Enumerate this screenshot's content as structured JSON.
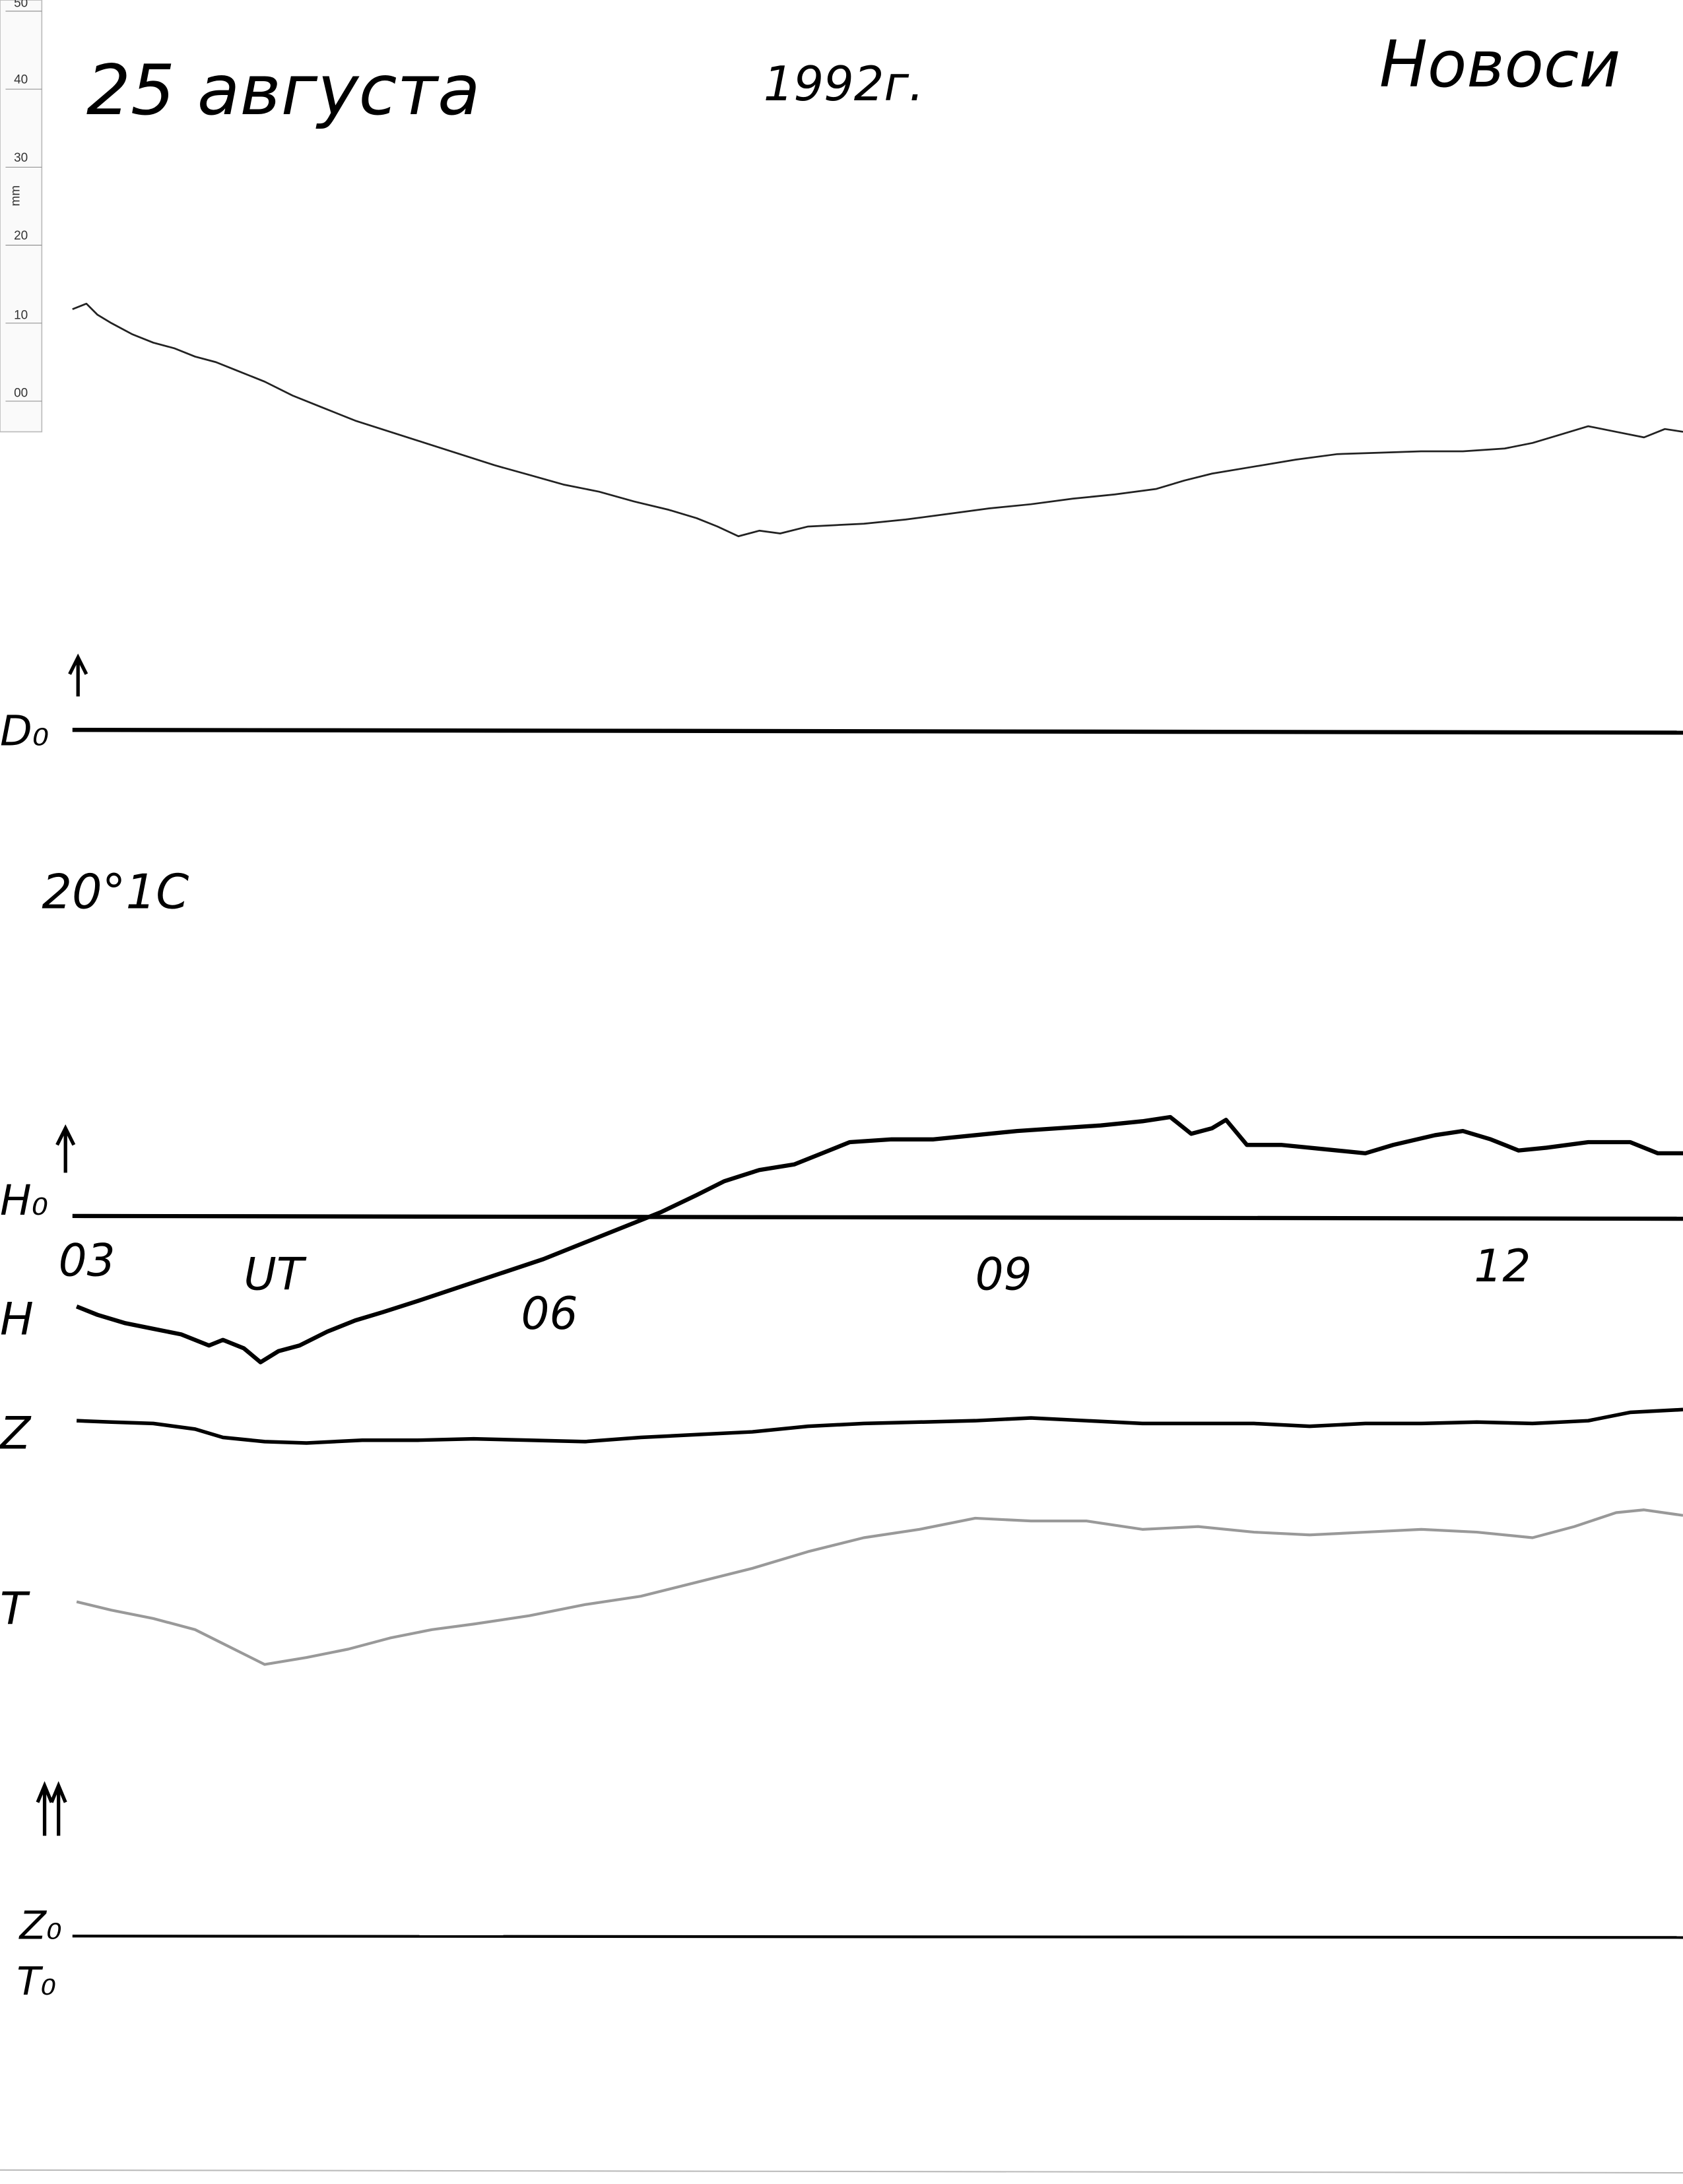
{
  "header": {
    "date": "25 августа",
    "year": "1992г.",
    "station": "Новоси"
  },
  "ruler": {
    "unit": "mm",
    "labels": [
      "50",
      "40",
      "30",
      "20",
      "10",
      "00"
    ]
  },
  "temperature": "20°1C",
  "labels": {
    "D_baseline": "D₀",
    "H_baseline": "H₀",
    "H": "H",
    "Z": "Z",
    "T": "T",
    "Z_baseline": "Z₀",
    "T_baseline": "T₀"
  },
  "time_axis": {
    "start": "03",
    "unit": "UT",
    "marks": [
      "06",
      "09",
      "12"
    ]
  }
}
